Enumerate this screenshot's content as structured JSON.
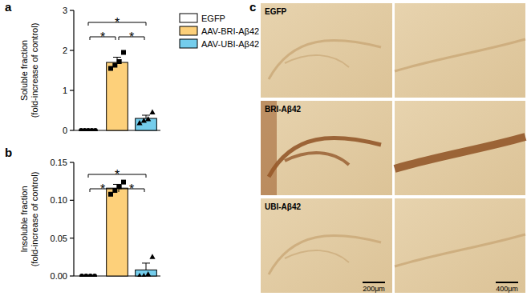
{
  "chart_data": [
    {
      "type": "bar",
      "title": "a",
      "y_label": "Soluble fraction\n(fold-increase of control)",
      "categories": [
        null
      ],
      "series": [
        {
          "name": "EGFP",
          "color": "#ffffff",
          "marker": "circle",
          "values": [
            0
          ],
          "errors": [
            0
          ],
          "points": [
            [
              0,
              0,
              0,
              0,
              0
            ]
          ]
        },
        {
          "name": "AAV-BRI-Aβ42",
          "color": "#fdd07a",
          "marker": "square",
          "values": [
            1.7
          ],
          "errors": [
            0.13
          ],
          "points": [
            [
              1.55,
              1.63,
              1.72,
              1.95
            ]
          ]
        },
        {
          "name": "AAV-UBI-Aβ42",
          "color": "#74cdec",
          "marker": "triangle",
          "values": [
            0.3
          ],
          "errors": [
            0.08
          ],
          "points": [
            [
              0.18,
              0.24,
              0.28,
              0.45
            ]
          ]
        }
      ],
      "significance": [
        {
          "pair": [
            "EGFP",
            "AAV-UBI-Aβ42"
          ],
          "label": "*"
        },
        {
          "pair": [
            "EGFP",
            "AAV-BRI-Aβ42"
          ],
          "label": "*"
        },
        {
          "pair": [
            "AAV-BRI-Aβ42",
            "AAV-UBI-Aβ42"
          ],
          "label": "*"
        }
      ],
      "ylim": [
        0,
        3
      ],
      "yticks": [
        0,
        1,
        2,
        3
      ],
      "grid": false,
      "legend": "right",
      "tick_labels": "y"
    },
    {
      "type": "bar",
      "title": "b",
      "y_label": "Insoluble fraction\n(fold-increase of control)",
      "categories": [
        null
      ],
      "series": [
        {
          "name": "EGFP",
          "color": "#ffffff",
          "marker": "circle",
          "values": [
            0
          ],
          "errors": [
            0
          ],
          "points": [
            [
              0,
              0,
              0,
              0
            ]
          ]
        },
        {
          "name": "AAV-BRI-Aβ42",
          "color": "#fdd07a",
          "marker": "square",
          "values": [
            0.116
          ],
          "errors": [
            0.005
          ],
          "points": [
            [
              0.108,
              0.113,
              0.118,
              0.124
            ]
          ]
        },
        {
          "name": "AAV-UBI-Aβ42",
          "color": "#74cdec",
          "marker": "triangle",
          "values": [
            0.008
          ],
          "errors": [
            0.009
          ],
          "points": [
            [
              0,
              0,
              0.002,
              0.025
            ]
          ]
        }
      ],
      "significance": [
        {
          "pair": [
            "EGFP",
            "AAV-UBI-Aβ42"
          ],
          "label": "*"
        },
        {
          "pair": [
            "EGFP",
            "AAV-BRI-Aβ42"
          ],
          "label": "*"
        },
        {
          "pair": [
            "AAV-BRI-Aβ42",
            "AAV-UBI-Aβ42"
          ],
          "label": "*"
        }
      ],
      "ylim": [
        0,
        0.15
      ],
      "yticks": [
        {
          "value": 0,
          "label": "0.00"
        },
        {
          "value": 0.05,
          "label": "0.05"
        },
        {
          "value": 0.1,
          "label": "0.10"
        },
        {
          "value": 0.15,
          "label": "0.15"
        }
      ],
      "grid": false,
      "tick_labels": "y"
    }
  ],
  "micrographs": {
    "label": "c",
    "rows": [
      "EGFP",
      "BRI-Aβ42",
      "UBI-Aβ42"
    ],
    "scale_bars": [
      "200μm",
      "400μm"
    ]
  }
}
